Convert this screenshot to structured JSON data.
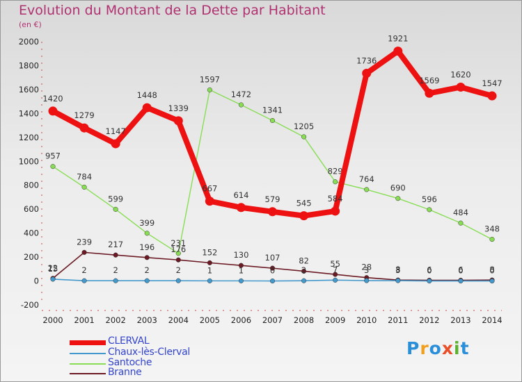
{
  "header": {
    "title": "Evolution du Montant de la Dette par Habitant",
    "unit": "(en €)"
  },
  "brand": "Proxiti",
  "chart_data": {
    "type": "line",
    "title": "Evolution du Montant de la Dette par Habitant",
    "ylabel": "(en €)",
    "xlabel": "",
    "ylim": [
      -200,
      2000
    ],
    "yticks": [
      -200,
      0,
      200,
      400,
      600,
      800,
      1000,
      1200,
      1400,
      1600,
      1800,
      2000
    ],
    "x": [
      "2000",
      "2001",
      "2002",
      "2003",
      "2004",
      "2005",
      "2006",
      "2007",
      "2008",
      "2009",
      "2010",
      "2011",
      "2012",
      "2013",
      "2014"
    ],
    "grid": false,
    "legend_position": "bottom-left",
    "series": [
      {
        "name": "Santoche",
        "color": "#88dd55",
        "values": [
          957,
          784,
          599,
          399,
          231,
          1597,
          1472,
          1341,
          1205,
          829,
          764,
          690,
          596,
          484,
          348
        ],
        "labels": [
          "957",
          "784",
          "599",
          "399",
          "231",
          "1597",
          "1472",
          "1341",
          "1205",
          "829",
          "764",
          "690",
          "596",
          "484",
          "348"
        ]
      },
      {
        "name": "Branne",
        "color": "#6b1a24",
        "values": [
          22,
          239,
          217,
          196,
          176,
          152,
          130,
          107,
          82,
          55,
          28,
          8,
          6,
          6,
          8
        ],
        "labels": [
          "22",
          "239",
          "217",
          "196",
          "176",
          "152",
          "130",
          "107",
          "82",
          "55",
          "28",
          "8",
          "6",
          "6",
          "8"
        ]
      },
      {
        "name": "Chaux-lès-Clerval",
        "color": "#4499cc",
        "values": [
          15,
          2,
          2,
          2,
          2,
          1,
          1,
          0,
          2,
          7,
          3,
          3,
          0,
          0,
          0
        ],
        "labels": [
          "15",
          "2",
          "2",
          "2",
          "2",
          "1",
          "1",
          "0",
          "2",
          "7",
          "3",
          "3",
          "0",
          "0",
          "0"
        ]
      },
      {
        "name": "CLERVAL",
        "color": "#ee1111",
        "values": [
          1420,
          1279,
          1147,
          1448,
          1339,
          667,
          614,
          579,
          545,
          584,
          1736,
          1921,
          1569,
          1620,
          1547
        ],
        "labels": [
          "1420",
          "1279",
          "1147",
          "1448",
          "1339",
          "667",
          "614",
          "579",
          "545",
          "584",
          "1736",
          "1921",
          "1569",
          "1620",
          "1547"
        ]
      }
    ]
  },
  "legend": [
    {
      "name": "CLERVAL",
      "color": "#ee1111",
      "stroke": 7
    },
    {
      "name": "Chaux-lès-Clerval",
      "color": "#4499cc",
      "stroke": 2
    },
    {
      "name": "Santoche",
      "color": "#88dd55",
      "stroke": 2
    },
    {
      "name": "Branne",
      "color": "#6b1a24",
      "stroke": 2
    }
  ]
}
